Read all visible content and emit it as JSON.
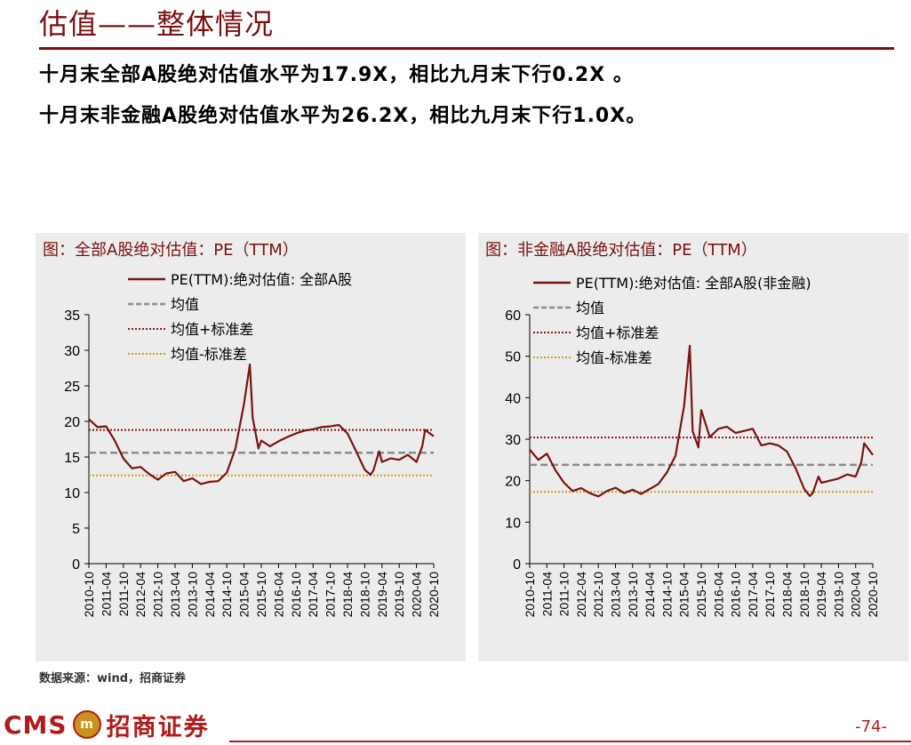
{
  "page": {
    "title": "估值——整体情况",
    "line1": "十月末全部A股绝对估值水平为17.9X，相比九月末下行0.2X 。",
    "line2": "十月末非金融A股绝对估值水平为26.2X，相比九月末下行1.0X。",
    "source": "数据来源：wind，招商证券",
    "page_number": "-74-",
    "logo": {
      "cms": "CMS",
      "badge": "m",
      "name": "招商证券"
    }
  },
  "colors": {
    "series": "#7a1414",
    "mean": "#8c8c8c",
    "plus_sd": "#8b1a1a",
    "minus_sd": "#d1a01a",
    "title": "#7a1010"
  },
  "chart_data": [
    {
      "type": "line",
      "title": "图：全部A股绝对估值：PE（TTM）",
      "x_ticks": [
        "2010-10",
        "2011-04",
        "2011-10",
        "2012-04",
        "2012-10",
        "2013-04",
        "2013-10",
        "2014-04",
        "2014-10",
        "2015-04",
        "2015-10",
        "2016-04",
        "2016-10",
        "2017-04",
        "2017-10",
        "2018-04",
        "2018-10",
        "2019-04",
        "2019-10",
        "2020-04",
        "2020-10"
      ],
      "ylim": [
        0,
        35
      ],
      "y_ticks": [
        0,
        5,
        10,
        15,
        20,
        25,
        30,
        35
      ],
      "legend": [
        "PE(TTM):绝对估值: 全部A股",
        "均值",
        "均值+标准差",
        "均值-标准差"
      ],
      "legend_position": "top",
      "reference_lines": {
        "mean": 15.6,
        "plus_sd": 18.8,
        "minus_sd": 12.4
      },
      "x": [
        "2010-10",
        "2011-01",
        "2011-04",
        "2011-07",
        "2011-10",
        "2012-01",
        "2012-04",
        "2012-07",
        "2012-10",
        "2013-01",
        "2013-04",
        "2013-07",
        "2013-10",
        "2014-01",
        "2014-04",
        "2014-07",
        "2014-10",
        "2015-01",
        "2015-04",
        "2015-06",
        "2015-07",
        "2015-09",
        "2015-10",
        "2016-01",
        "2016-04",
        "2016-07",
        "2016-10",
        "2017-01",
        "2017-04",
        "2017-07",
        "2017-10",
        "2018-01",
        "2018-04",
        "2018-07",
        "2018-10",
        "2018-12",
        "2019-01",
        "2019-03",
        "2019-04",
        "2019-07",
        "2019-10",
        "2020-01",
        "2020-04",
        "2020-06",
        "2020-07",
        "2020-10"
      ],
      "values": [
        20.3,
        19.2,
        19.3,
        17.3,
        14.8,
        13.4,
        13.6,
        12.6,
        11.8,
        12.7,
        12.9,
        11.6,
        12.0,
        11.2,
        11.5,
        11.6,
        12.8,
        16.2,
        22.5,
        28.0,
        20.5,
        16.2,
        17.3,
        16.5,
        17.2,
        17.8,
        18.3,
        18.7,
        18.9,
        19.2,
        19.3,
        19.5,
        18.3,
        15.8,
        13.2,
        12.5,
        13.1,
        15.8,
        14.3,
        14.8,
        14.6,
        15.3,
        14.3,
        16.5,
        18.8,
        17.9
      ]
    },
    {
      "type": "line",
      "title": "图：非金融A股绝对估值：PE（TTM）",
      "x_ticks": [
        "2010-10",
        "2011-04",
        "2011-10",
        "2012-04",
        "2012-10",
        "2013-04",
        "2013-10",
        "2014-04",
        "2014-10",
        "2015-04",
        "2015-10",
        "2016-04",
        "2016-10",
        "2017-04",
        "2017-10",
        "2018-04",
        "2018-10",
        "2019-04",
        "2019-10",
        "2020-04",
        "2020-10"
      ],
      "ylim": [
        0,
        60
      ],
      "y_ticks": [
        0,
        10,
        20,
        30,
        40,
        50,
        60
      ],
      "legend": [
        "PE(TTM):绝对估值: 全部A股(非金融)",
        "均值",
        "均值+标准差",
        "均值-标准差"
      ],
      "legend_position": "top",
      "reference_lines": {
        "mean": 23.8,
        "plus_sd": 30.4,
        "minus_sd": 17.3
      },
      "x": [
        "2010-10",
        "2011-01",
        "2011-04",
        "2011-07",
        "2011-10",
        "2012-01",
        "2012-04",
        "2012-07",
        "2012-10",
        "2013-01",
        "2013-04",
        "2013-07",
        "2013-10",
        "2014-01",
        "2014-04",
        "2014-07",
        "2014-10",
        "2015-01",
        "2015-04",
        "2015-06",
        "2015-07",
        "2015-09",
        "2015-10",
        "2016-01",
        "2016-04",
        "2016-07",
        "2016-10",
        "2017-01",
        "2017-04",
        "2017-07",
        "2017-10",
        "2018-01",
        "2018-04",
        "2018-07",
        "2018-10",
        "2018-12",
        "2019-01",
        "2019-03",
        "2019-04",
        "2019-07",
        "2019-10",
        "2020-01",
        "2020-04",
        "2020-06",
        "2020-07",
        "2020-10"
      ],
      "values": [
        27.5,
        25.0,
        26.5,
        22.5,
        19.5,
        17.5,
        18.2,
        17.0,
        16.2,
        17.5,
        18.3,
        17.0,
        17.8,
        16.8,
        18.0,
        19.2,
        22.0,
        26.0,
        38.0,
        52.5,
        32.0,
        28.0,
        37.0,
        30.5,
        32.5,
        33.0,
        31.5,
        32.0,
        32.5,
        28.5,
        29.0,
        28.5,
        27.0,
        23.0,
        18.0,
        16.3,
        17.0,
        21.0,
        19.5,
        20.0,
        20.5,
        21.5,
        21.0,
        24.5,
        29.0,
        26.2
      ]
    }
  ]
}
